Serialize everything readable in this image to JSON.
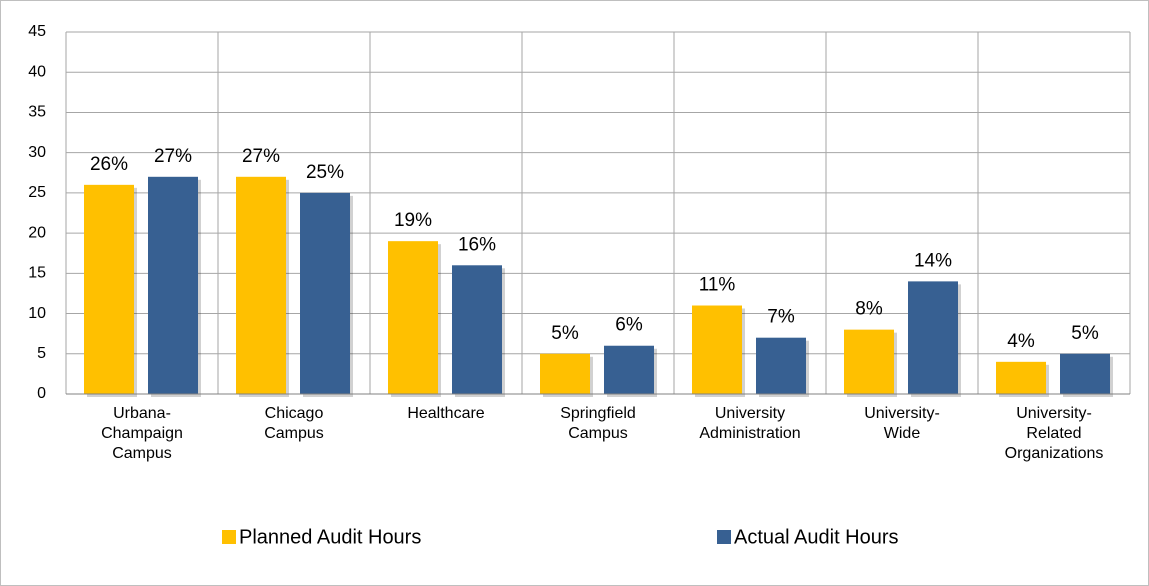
{
  "chart_data": {
    "type": "bar",
    "categories": [
      "Urbana-Champaign Campus",
      "Chicago Campus",
      "Healthcare",
      "Springfield Campus",
      "University Administration",
      "University-Wide",
      "University-Related Organizations"
    ],
    "series": [
      {
        "name": "Planned Audit Hours",
        "color": "#ffc000",
        "values": [
          26,
          27,
          19,
          5,
          11,
          8,
          4
        ],
        "value_labels": [
          "26%",
          "27%",
          "19%",
          "5%",
          "11%",
          "8%",
          "4%"
        ]
      },
      {
        "name": "Actual Audit Hours",
        "color": "#376092",
        "values": [
          27,
          25,
          16,
          6,
          7,
          14,
          5
        ],
        "value_labels": [
          "27%",
          "25%",
          "16%",
          "6%",
          "7%",
          "14%",
          "5%"
        ]
      }
    ],
    "ylim": [
      0,
      45
    ],
    "yticks": [
      0,
      5,
      10,
      15,
      20,
      25,
      30,
      35,
      40,
      45
    ],
    "grid": true,
    "legend": "bottom"
  }
}
